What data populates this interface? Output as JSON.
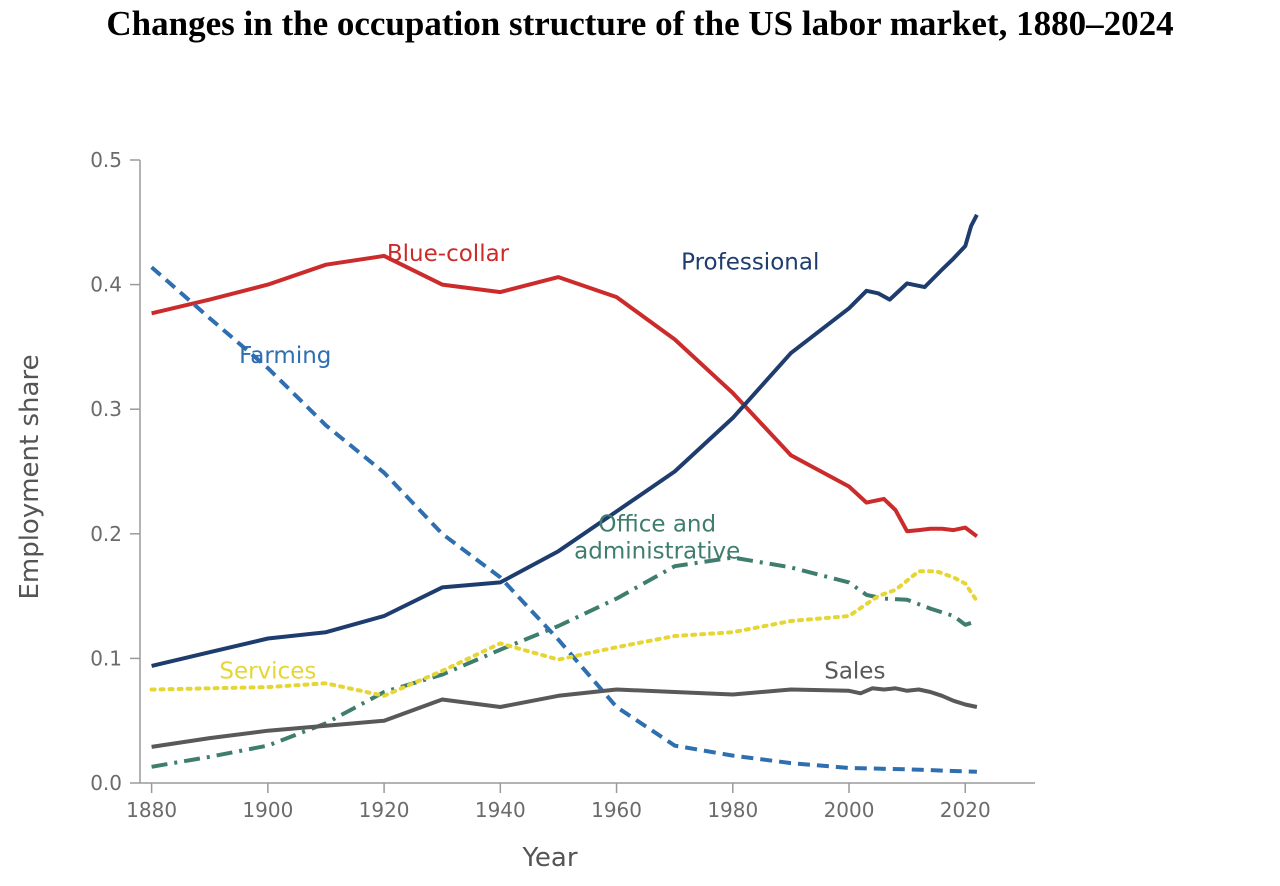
{
  "chart_data": {
    "type": "line",
    "title": "Changes in the occupation structure of the US labor market, 1880–2024",
    "xlabel": "Year",
    "ylabel": "Employment share",
    "xlim": [
      1878,
      2032
    ],
    "ylim": [
      0,
      0.5
    ],
    "x_ticks": [
      "1880",
      "1900",
      "1920",
      "1940",
      "1960",
      "1980",
      "2000",
      "2020"
    ],
    "y_ticks": [
      "0.0",
      "0.1",
      "0.2",
      "0.3",
      "0.4",
      "0.5"
    ],
    "grid": false,
    "legend": "inline labels",
    "series": [
      {
        "name": "Blue-collar",
        "color": "#cc2b2b",
        "dash": "solid",
        "points": [
          [
            1880,
            0.377
          ],
          [
            1890,
            0.388
          ],
          [
            1900,
            0.4
          ],
          [
            1910,
            0.416
          ],
          [
            1920,
            0.423
          ],
          [
            1930,
            0.4
          ],
          [
            1940,
            0.394
          ],
          [
            1950,
            0.406
          ],
          [
            1960,
            0.39
          ],
          [
            1970,
            0.356
          ],
          [
            1980,
            0.313
          ],
          [
            1990,
            0.263
          ],
          [
            2000,
            0.238
          ],
          [
            2003,
            0.225
          ],
          [
            2006,
            0.228
          ],
          [
            2008,
            0.219
          ],
          [
            2010,
            0.202
          ],
          [
            2012,
            0.203
          ],
          [
            2014,
            0.204
          ],
          [
            2016,
            0.204
          ],
          [
            2018,
            0.203
          ],
          [
            2020,
            0.205
          ],
          [
            2022,
            0.198
          ]
        ]
      },
      {
        "name": "Professional",
        "color": "#1e3d6e",
        "dash": "solid",
        "points": [
          [
            1880,
            0.094
          ],
          [
            1890,
            0.105
          ],
          [
            1900,
            0.116
          ],
          [
            1910,
            0.121
          ],
          [
            1920,
            0.134
          ],
          [
            1930,
            0.157
          ],
          [
            1940,
            0.161
          ],
          [
            1950,
            0.186
          ],
          [
            1960,
            0.218
          ],
          [
            1970,
            0.25
          ],
          [
            1980,
            0.293
          ],
          [
            1990,
            0.345
          ],
          [
            2000,
            0.381
          ],
          [
            2003,
            0.395
          ],
          [
            2005,
            0.393
          ],
          [
            2007,
            0.388
          ],
          [
            2010,
            0.401
          ],
          [
            2013,
            0.398
          ],
          [
            2016,
            0.412
          ],
          [
            2018,
            0.421
          ],
          [
            2020,
            0.431
          ],
          [
            2021,
            0.447
          ],
          [
            2022,
            0.456
          ]
        ]
      },
      {
        "name": "Farming",
        "color": "#2f6fb0",
        "dash": "dashed",
        "points": [
          [
            1880,
            0.414
          ],
          [
            1890,
            0.373
          ],
          [
            1900,
            0.333
          ],
          [
            1910,
            0.287
          ],
          [
            1920,
            0.249
          ],
          [
            1930,
            0.2
          ],
          [
            1940,
            0.165
          ],
          [
            1950,
            0.115
          ],
          [
            1960,
            0.061
          ],
          [
            1970,
            0.03
          ],
          [
            1980,
            0.022
          ],
          [
            1990,
            0.016
          ],
          [
            2000,
            0.012
          ],
          [
            2010,
            0.011
          ],
          [
            2022,
            0.009
          ]
        ]
      },
      {
        "name": "Office and administrative",
        "color": "#3f7d6e",
        "dash": "dashdot",
        "points": [
          [
            1880,
            0.013
          ],
          [
            1890,
            0.021
          ],
          [
            1900,
            0.03
          ],
          [
            1910,
            0.048
          ],
          [
            1920,
            0.073
          ],
          [
            1930,
            0.087
          ],
          [
            1940,
            0.107
          ],
          [
            1950,
            0.126
          ],
          [
            1960,
            0.148
          ],
          [
            1970,
            0.174
          ],
          [
            1980,
            0.181
          ],
          [
            1990,
            0.173
          ],
          [
            2000,
            0.161
          ],
          [
            2003,
            0.151
          ],
          [
            2006,
            0.148
          ],
          [
            2010,
            0.147
          ],
          [
            2014,
            0.14
          ],
          [
            2018,
            0.134
          ],
          [
            2020,
            0.127
          ],
          [
            2022,
            0.13
          ]
        ]
      },
      {
        "name": "Services",
        "color": "#e6d635",
        "dash": "dotted",
        "points": [
          [
            1880,
            0.075
          ],
          [
            1890,
            0.076
          ],
          [
            1900,
            0.077
          ],
          [
            1910,
            0.08
          ],
          [
            1920,
            0.07
          ],
          [
            1930,
            0.09
          ],
          [
            1940,
            0.112
          ],
          [
            1950,
            0.099
          ],
          [
            1960,
            0.109
          ],
          [
            1970,
            0.118
          ],
          [
            1980,
            0.121
          ],
          [
            1990,
            0.13
          ],
          [
            2000,
            0.134
          ],
          [
            2005,
            0.15
          ],
          [
            2008,
            0.155
          ],
          [
            2012,
            0.17
          ],
          [
            2015,
            0.17
          ],
          [
            2018,
            0.165
          ],
          [
            2020,
            0.16
          ],
          [
            2022,
            0.146
          ]
        ]
      },
      {
        "name": "Sales",
        "color": "#595959",
        "dash": "solid",
        "points": [
          [
            1880,
            0.029
          ],
          [
            1890,
            0.036
          ],
          [
            1900,
            0.042
          ],
          [
            1910,
            0.046
          ],
          [
            1920,
            0.05
          ],
          [
            1930,
            0.067
          ],
          [
            1940,
            0.061
          ],
          [
            1950,
            0.07
          ],
          [
            1960,
            0.075
          ],
          [
            1970,
            0.073
          ],
          [
            1980,
            0.071
          ],
          [
            1990,
            0.075
          ],
          [
            2000,
            0.074
          ],
          [
            2002,
            0.072
          ],
          [
            2004,
            0.076
          ],
          [
            2006,
            0.075
          ],
          [
            2008,
            0.076
          ],
          [
            2010,
            0.074
          ],
          [
            2012,
            0.075
          ],
          [
            2014,
            0.073
          ],
          [
            2016,
            0.07
          ],
          [
            2018,
            0.066
          ],
          [
            2020,
            0.063
          ],
          [
            2022,
            0.061
          ]
        ]
      }
    ],
    "labels": [
      {
        "text": "Blue-collar",
        "x": 1931,
        "y": 0.419,
        "color": "#cc2b2b",
        "lines": [
          "Blue-collar"
        ]
      },
      {
        "text": "Professional",
        "x": 1983,
        "y": 0.412,
        "color": "#1e3d6e",
        "lines": [
          "Professional"
        ]
      },
      {
        "text": "Farming",
        "x": 1903,
        "y": 0.337,
        "color": "#2f6fb0",
        "lines": [
          "Farming"
        ]
      },
      {
        "text": "Office and administrative",
        "x": 1967,
        "y": 0.202,
        "color": "#3f7d6e",
        "lines": [
          "Office and",
          "administrative"
        ]
      },
      {
        "text": "Services",
        "x": 1900,
        "y": 0.084,
        "color": "#e6d635",
        "lines": [
          "Services"
        ]
      },
      {
        "text": "Sales",
        "x": 2001,
        "y": 0.084,
        "color": "#595959",
        "lines": [
          "Sales"
        ]
      }
    ]
  }
}
